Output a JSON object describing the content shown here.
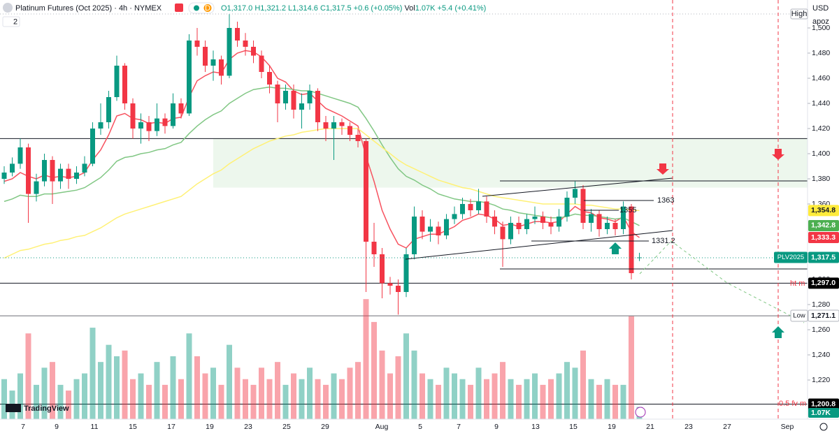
{
  "header": {
    "title": "Platinum Futures (Oct 2025) · 4h · NYMEX",
    "ohlc": [
      "O1,317.0",
      "H1,321.2",
      "L1,314.6",
      "C1,317.5",
      "+0.6 (+0.05%)"
    ],
    "vol_label": "Vol",
    "vol": "1.07K",
    "vol_change": "+5.4 (+0.41%)",
    "indicators": "2",
    "currency": "USD",
    "unit": "apoz",
    "brand": "TradingView",
    "d_badge": "D"
  },
  "chart_data": {
    "type": "candlestick",
    "title": "Platinum Futures (Oct 2025)",
    "ohlc": [
      [
        1380,
        1390,
        1376,
        1385
      ],
      [
        1385,
        1397,
        1382,
        1392
      ],
      [
        1392,
        1412,
        1388,
        1405
      ],
      [
        1405,
        1408,
        1345,
        1368
      ],
      [
        1368,
        1384,
        1362,
        1378
      ],
      [
        1378,
        1400,
        1374,
        1395
      ],
      [
        1395,
        1398,
        1360,
        1378
      ],
      [
        1378,
        1392,
        1372,
        1388
      ],
      [
        1388,
        1392,
        1372,
        1380
      ],
      [
        1380,
        1390,
        1376,
        1385
      ],
      [
        1385,
        1398,
        1382,
        1392
      ],
      [
        1392,
        1425,
        1390,
        1420
      ],
      [
        1420,
        1440,
        1415,
        1425
      ],
      [
        1425,
        1450,
        1420,
        1445
      ],
      [
        1445,
        1478,
        1442,
        1470
      ],
      [
        1470,
        1472,
        1435,
        1440
      ],
      [
        1440,
        1444,
        1412,
        1420
      ],
      [
        1420,
        1432,
        1408,
        1425
      ],
      [
        1425,
        1430,
        1410,
        1418
      ],
      [
        1418,
        1440,
        1414,
        1428
      ],
      [
        1428,
        1432,
        1416,
        1422
      ],
      [
        1422,
        1448,
        1420,
        1440
      ],
      [
        1440,
        1444,
        1428,
        1432
      ],
      [
        1432,
        1495,
        1430,
        1490
      ],
      [
        1490,
        1500,
        1478,
        1485
      ],
      [
        1485,
        1490,
        1465,
        1470
      ],
      [
        1470,
        1482,
        1458,
        1475
      ],
      [
        1475,
        1478,
        1455,
        1462
      ],
      [
        1462,
        1511,
        1460,
        1500
      ],
      [
        1500,
        1505,
        1485,
        1490
      ],
      [
        1490,
        1496,
        1478,
        1485
      ],
      [
        1485,
        1490,
        1472,
        1478
      ],
      [
        1478,
        1482,
        1460,
        1465
      ],
      [
        1465,
        1470,
        1448,
        1455
      ],
      [
        1455,
        1458,
        1425,
        1440
      ],
      [
        1440,
        1455,
        1435,
        1450
      ],
      [
        1450,
        1455,
        1428,
        1435
      ],
      [
        1435,
        1448,
        1420,
        1440
      ],
      [
        1440,
        1455,
        1435,
        1450
      ],
      [
        1450,
        1452,
        1418,
        1425
      ],
      [
        1425,
        1430,
        1410,
        1420
      ],
      [
        1420,
        1430,
        1395,
        1425
      ],
      [
        1425,
        1428,
        1415,
        1422
      ],
      [
        1422,
        1425,
        1410,
        1415
      ],
      [
        1415,
        1420,
        1405,
        1410
      ],
      [
        1410,
        1412,
        1290,
        1330
      ],
      [
        1330,
        1345,
        1310,
        1320
      ],
      [
        1320,
        1325,
        1285,
        1297
      ],
      [
        1297,
        1302,
        1288,
        1295
      ],
      [
        1295,
        1300,
        1272,
        1290
      ],
      [
        1290,
        1325,
        1286,
        1320
      ],
      [
        1320,
        1358,
        1316,
        1350
      ],
      [
        1350,
        1355,
        1332,
        1338
      ],
      [
        1338,
        1348,
        1330,
        1342
      ],
      [
        1342,
        1346,
        1328,
        1335
      ],
      [
        1335,
        1352,
        1332,
        1348
      ],
      [
        1348,
        1358,
        1344,
        1352
      ],
      [
        1352,
        1365,
        1348,
        1360
      ],
      [
        1360,
        1364,
        1350,
        1355
      ],
      [
        1355,
        1372,
        1352,
        1362
      ],
      [
        1362,
        1366,
        1345,
        1350
      ],
      [
        1350,
        1355,
        1336,
        1342
      ],
      [
        1342,
        1346,
        1310,
        1332
      ],
      [
        1332,
        1350,
        1328,
        1345
      ],
      [
        1345,
        1350,
        1336,
        1340
      ],
      [
        1340,
        1352,
        1336,
        1348
      ],
      [
        1348,
        1358,
        1344,
        1350
      ],
      [
        1350,
        1354,
        1340,
        1345
      ],
      [
        1345,
        1350,
        1336,
        1342
      ],
      [
        1342,
        1356,
        1338,
        1350
      ],
      [
        1350,
        1370,
        1346,
        1365
      ],
      [
        1365,
        1378,
        1360,
        1372
      ],
      [
        1372,
        1375,
        1340,
        1345
      ],
      [
        1345,
        1356,
        1338,
        1352
      ],
      [
        1352,
        1355,
        1334,
        1340
      ],
      [
        1340,
        1350,
        1336,
        1345
      ],
      [
        1345,
        1348,
        1335,
        1340
      ],
      [
        1340,
        1362,
        1336,
        1358
      ],
      [
        1358,
        1360,
        1300,
        1305
      ],
      [
        1317.0,
        1321.2,
        1314.6,
        1317.5
      ]
    ],
    "volume": [
      3.5,
      2.5,
      4.0,
      7.5,
      3.0,
      4.5,
      5.0,
      3.0,
      2.5,
      3.5,
      4.0,
      8.0,
      5.0,
      6.5,
      5.5,
      6.0,
      3.5,
      4.0,
      3.0,
      5.0,
      3.0,
      5.5,
      3.5,
      7.5,
      5.5,
      4.0,
      4.5,
      3.0,
      6.5,
      4.5,
      3.5,
      3.0,
      4.5,
      3.5,
      5.0,
      3.0,
      4.0,
      3.5,
      4.5,
      3.5,
      3.0,
      4.0,
      3.5,
      4.5,
      5.0,
      10.5,
      8.5,
      6.0,
      4.0,
      5.5,
      7.5,
      6.0,
      4.0,
      3.5,
      3.0,
      4.5,
      4.0,
      3.5,
      3.0,
      4.5,
      3.5,
      4.0,
      5.0,
      3.5,
      3.0,
      3.5,
      4.0,
      3.0,
      3.5,
      4.0,
      5.0,
      4.5,
      6.0,
      3.5,
      3.0,
      3.5,
      3.0,
      3.0,
      9.0,
      1.07
    ],
    "volume_lim": [
      0,
      11
    ],
    "up_color": "#089981",
    "down_color": "#f23645",
    "series": [
      {
        "color": "#f7525f",
        "values": [
          1378,
          1380,
          1385,
          1382,
          1380,
          1383,
          1381,
          1382,
          1381,
          1382,
          1385,
          1395,
          1403,
          1415,
          1430,
          1432,
          1428,
          1427,
          1424,
          1425,
          1424,
          1428,
          1429,
          1445,
          1458,
          1462,
          1465,
          1464,
          1475,
          1480,
          1482,
          1481,
          1477,
          1470,
          1460,
          1457,
          1450,
          1447,
          1448,
          1442,
          1436,
          1433,
          1430,
          1426,
          1422,
          1398,
          1378,
          1355,
          1340,
          1328,
          1325,
          1332,
          1334,
          1336,
          1336,
          1339,
          1342,
          1347,
          1349,
          1352,
          1351,
          1348,
          1343,
          1344,
          1342,
          1344,
          1346,
          1346,
          1345,
          1346,
          1352,
          1358,
          1354,
          1353,
          1349,
          1348,
          1346,
          1350,
          1338,
          1333.3
        ]
      },
      {
        "color": "#81c784",
        "values": [
          1362,
          1364,
          1367,
          1366,
          1366,
          1368,
          1368,
          1369,
          1370,
          1371,
          1373,
          1377,
          1381,
          1387,
          1394,
          1397,
          1398,
          1400,
          1401,
          1403,
          1404,
          1407,
          1409,
          1416,
          1422,
          1427,
          1431,
          1434,
          1440,
          1444,
          1448,
          1451,
          1452,
          1453,
          1452,
          1452,
          1451,
          1450,
          1450,
          1448,
          1446,
          1444,
          1442,
          1440,
          1437,
          1428,
          1418,
          1407,
          1397,
          1388,
          1382,
          1379,
          1375,
          1372,
          1368,
          1366,
          1364,
          1363,
          1362,
          1362,
          1361,
          1359,
          1356,
          1355,
          1353,
          1352,
          1351,
          1350,
          1349,
          1349,
          1350,
          1352,
          1351,
          1351,
          1350,
          1349,
          1348,
          1349,
          1346,
          1342.8
        ]
      },
      {
        "color": "#fff176",
        "values": [
          1317,
          1320,
          1323,
          1324,
          1326,
          1328,
          1329,
          1331,
          1332,
          1334,
          1335,
          1338,
          1341,
          1345,
          1349,
          1352,
          1354,
          1356,
          1358,
          1360,
          1362,
          1364,
          1366,
          1371,
          1376,
          1380,
          1384,
          1387,
          1392,
          1396,
          1400,
          1404,
          1407,
          1410,
          1412,
          1414,
          1415,
          1417,
          1418,
          1419,
          1420,
          1420,
          1420,
          1420,
          1420,
          1415,
          1410,
          1405,
          1400,
          1395,
          1391,
          1388,
          1385,
          1382,
          1379,
          1377,
          1375,
          1373,
          1372,
          1370,
          1368,
          1366,
          1365,
          1364,
          1363,
          1362,
          1361,
          1360,
          1360,
          1360,
          1360,
          1360,
          1359,
          1359,
          1358,
          1357,
          1356,
          1356,
          1355,
          1354.8
        ]
      }
    ],
    "ylim": [
      1190,
      1520
    ],
    "yticks": [
      {
        "value": 1500,
        "label": "1,500"
      },
      {
        "value": 1480,
        "label": "1,480"
      },
      {
        "value": 1460,
        "label": "1,460"
      },
      {
        "value": 1440,
        "label": "1,440"
      },
      {
        "value": 1420,
        "label": "1,420"
      },
      {
        "value": 1400,
        "label": "1,400"
      },
      {
        "value": 1380,
        "label": "1,380"
      },
      {
        "value": 1360,
        "label": "1,360"
      },
      {
        "value": 1300,
        "label": "1,300"
      },
      {
        "value": 1280,
        "label": "1,280"
      },
      {
        "value": 1260,
        "label": "1,260"
      },
      {
        "value": 1240,
        "label": "1,240"
      },
      {
        "value": 1220,
        "label": "1,220"
      }
    ],
    "xlabels": [
      "7",
      "9",
      "11",
      "15",
      "17",
      "19",
      "23",
      "25",
      "29",
      "Aug",
      "5",
      "7",
      "9",
      "13",
      "15",
      "19",
      "21",
      "23",
      "27",
      "Sep"
    ],
    "zone": [
      1373,
      1412
    ],
    "hlines": [
      1412,
      1297,
      1271.1,
      1200.8
    ],
    "badges": [
      {
        "value": 1354.8,
        "label": "1,354.8",
        "color": "#ffeb3b"
      },
      {
        "value": 1342.8,
        "label": "1,342.8",
        "color": "#4caf50"
      },
      {
        "value": 1333.3,
        "label": "1,333.3",
        "color": "#f23645"
      },
      {
        "value": 1317.5,
        "label": "1,317.5",
        "color": "#089981",
        "tag": "PLV2025"
      },
      {
        "value": 1297.0,
        "label": "1,297.0",
        "color": "#000000"
      },
      {
        "value": 1271.1,
        "label": "1,271.1",
        "color": "#ffffff",
        "tag": "Low"
      },
      {
        "value": 1200.8,
        "label": "1,200.8",
        "color": "#000000"
      }
    ],
    "high_tag": "High",
    "annotations": [
      "1363",
      "1355",
      "1331.2",
      "ht m",
      "0.5 fv m"
    ],
    "grid": false
  }
}
